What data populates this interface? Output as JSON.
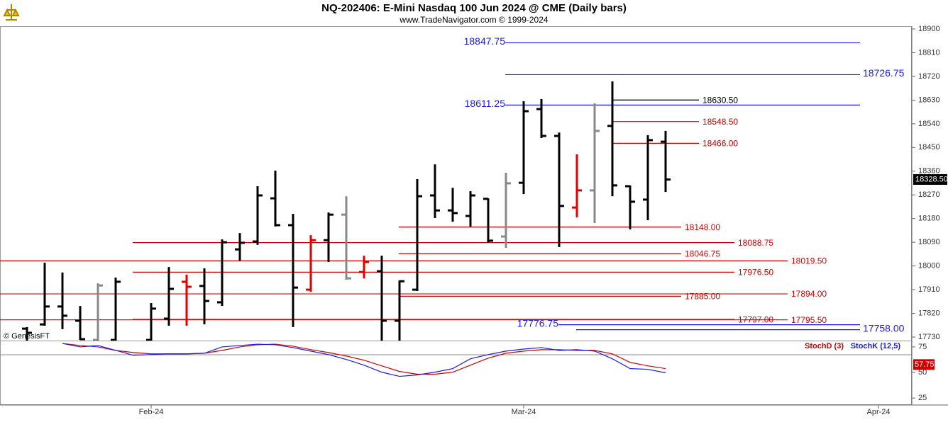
{
  "chart_data": [
    {
      "type": "ohlc",
      "title": "NQ-202406:  E-Mini Nasdaq 100 Jun 2024 @ CME  (Daily bars)",
      "subtitle": "www.TradeNavigator.com © 1999-2024",
      "watermark": "© GenesisFT",
      "categories": [
        null,
        null,
        null,
        null,
        null,
        null,
        null,
        "Feb-24",
        null,
        null,
        null,
        null,
        null,
        null,
        null,
        null,
        null,
        null,
        null,
        null,
        null,
        null,
        null,
        null,
        null,
        null,
        null,
        null,
        "Mar-24",
        null,
        null,
        null,
        null,
        null,
        null,
        null,
        null,
        null,
        null,
        null,
        null,
        null,
        null,
        null,
        null,
        null,
        null,
        null,
        "Apr-24"
      ],
      "open": [
        17762,
        17778,
        17846,
        17792,
        17719,
        17719,
        null,
        17719,
        17800,
        17940,
        17924,
        17862,
        18063,
        18093,
        18257,
        18155,
        17910,
        18098,
        18195,
        17977,
        17980,
        17792,
        17910,
        18268,
        18211,
        18190,
        18255,
        18112,
        18316,
        18596,
        18494,
        18222,
        18287,
        18532,
        18303,
        18252,
        18472,
        null,
        null,
        null,
        null,
        null,
        null,
        null,
        null,
        null,
        null,
        null,
        null
      ],
      "high": [
        17768,
        18012,
        17975,
        17848,
        17934,
        17956,
        null,
        17859,
        17996,
        17967,
        17991,
        18101,
        18125,
        18303,
        18362,
        18198,
        18117,
        18203,
        18265,
        18039,
        18039,
        17945,
        18330,
        18386,
        18297,
        18284,
        18257,
        18354,
        18626,
        18634,
        18507,
        18424,
        18618,
        18701,
        18306,
        18497,
        18513,
        null,
        null,
        null,
        null,
        null,
        null,
        null,
        null,
        null,
        null,
        null,
        null
      ],
      "low": [
        17706,
        17773,
        17760,
        17719,
        17706,
        17706,
        null,
        17706,
        17773,
        17773,
        17778,
        17848,
        18020,
        18080,
        18150,
        17768,
        17902,
        18015,
        17948,
        17953,
        17706,
        17706,
        17905,
        18182,
        18168,
        18150,
        18088,
        18069,
        18273,
        18486,
        18072,
        18185,
        18163,
        18265,
        18139,
        18174,
        18281,
        null,
        null,
        null,
        null,
        null,
        null,
        null,
        null,
        null,
        null,
        null,
        null
      ],
      "close": [
        17746,
        17846,
        17811,
        17722,
        17926,
        17940,
        null,
        17838,
        17913,
        17921,
        17867,
        18090,
        18088,
        18268,
        18155,
        17918,
        18098,
        18195,
        17953,
        18015,
        17792,
        17942,
        18265,
        18211,
        18201,
        18268,
        18096,
        18314,
        18588,
        18494,
        18228,
        18287,
        18513,
        18306,
        18244,
        18478,
        18328.5,
        null,
        null,
        null,
        null,
        null,
        null,
        null,
        null,
        null,
        null,
        null,
        null
      ],
      "colors": [
        "#000",
        "#000",
        "#000",
        "#000",
        "#888",
        "#000",
        null,
        "#000",
        "#000",
        "#e00000",
        "#000",
        "#000",
        "#000",
        "#000",
        "#000",
        "#000",
        "#e00000",
        "#000",
        "#888",
        "#e00000",
        "#000",
        "#000",
        "#000",
        "#000",
        "#000",
        "#000",
        "#000",
        "#888",
        "#000",
        "#000",
        "#000",
        "#e00000",
        "#888",
        "#000",
        "#000",
        "#000",
        "#000",
        null,
        null,
        null,
        null,
        null,
        null,
        null,
        null,
        null,
        null,
        null,
        null
      ],
      "ylim": [
        17716.6,
        18910.8
      ],
      "yticks": [
        18900,
        18810,
        18720,
        18630,
        18540,
        18450,
        18360,
        18270,
        18180,
        18090,
        18000,
        17910,
        17820,
        17730
      ],
      "last_price": {
        "value": 18328.5,
        "label": "18328.50"
      },
      "levels": [
        {
          "value": 18847.75,
          "label": "18847.75",
          "color": "#1a1ae6"
        },
        {
          "value": 18726.75,
          "label": "18726.75",
          "color": "#1a1ae6"
        },
        {
          "value": 18630.5,
          "label": "18630.50",
          "color": "#000000"
        },
        {
          "value": 18611.25,
          "label": "18611.25",
          "color": "#1a1ae6"
        },
        {
          "value": 18548.5,
          "label": "18548.50",
          "color": "#d00000"
        },
        {
          "value": 18466,
          "label": "18466.00",
          "color": "#d00000"
        },
        {
          "value": 18148,
          "label": "18148.00",
          "color": "#d00000"
        },
        {
          "value": 18088.75,
          "label": "18088.75",
          "color": "#d00000"
        },
        {
          "value": 18046.75,
          "label": "18046.75",
          "color": "#d00000"
        },
        {
          "value": 18019.5,
          "label": "18019.50",
          "color": "#d00000"
        },
        {
          "value": 17976.5,
          "label": "17976.50",
          "color": "#d00000"
        },
        {
          "value": 17894,
          "label": "17894.00",
          "color": "#d00000"
        },
        {
          "value": 17885,
          "label": "17885.00",
          "color": "#d00000"
        },
        {
          "value": 17797,
          "label": "17797.00",
          "color": "#d00000"
        },
        {
          "value": 17795.5,
          "label": "17795.50",
          "color": "#d00000"
        },
        {
          "value": 17776.75,
          "label": "17776.75",
          "color": "#1a1ae6"
        },
        {
          "value": 17758,
          "label": "17758.00",
          "color": "#1a1ae6"
        }
      ]
    },
    {
      "type": "line",
      "series": [
        {
          "name": "StochD (3)",
          "color": "#d00000",
          "values": [
            null,
            null,
            78.4,
            76.4,
            75,
            71.6,
            69.5,
            68.2,
            68.2,
            68.2,
            68.8,
            71.6,
            75,
            77.1,
            77.7,
            75.7,
            72.3,
            69.5,
            66.1,
            62,
            56.5,
            51,
            48.3,
            48.3,
            50.3,
            57.2,
            64,
            68.8,
            70.9,
            72.3,
            72.3,
            71.6,
            71.6,
            68.2,
            59.9,
            56.5,
            53.8,
            null,
            null,
            null,
            null,
            null,
            null,
            null,
            null,
            null,
            null,
            null,
            null
          ]
        },
        {
          "name": "StochK (12,5)",
          "color": "#1a1ae6",
          "values": [
            null,
            null,
            78.4,
            75,
            76.4,
            71.6,
            66.8,
            67.5,
            68.2,
            68.2,
            68.8,
            75,
            76.4,
            77.7,
            77.1,
            74.3,
            70.9,
            67.5,
            62.7,
            57.2,
            50.3,
            46.2,
            47.6,
            50.3,
            53.8,
            63.4,
            67.5,
            70.9,
            72.9,
            74.3,
            71.6,
            72.3,
            70.9,
            63.4,
            53.8,
            53.1,
            49.7,
            null,
            null,
            null,
            null,
            null,
            null,
            null,
            null,
            null,
            null,
            null,
            null
          ]
        }
      ],
      "ylim": [
        18.2,
        80.5
      ],
      "yticks": [
        25,
        50,
        75
      ],
      "last_value": {
        "value": 57.75,
        "label": "57.75"
      }
    }
  ]
}
